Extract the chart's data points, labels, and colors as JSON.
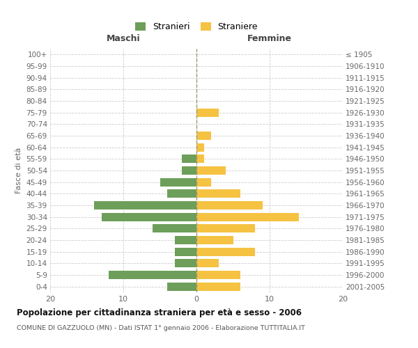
{
  "age_groups": [
    "100+",
    "95-99",
    "90-94",
    "85-89",
    "80-84",
    "75-79",
    "70-74",
    "65-69",
    "60-64",
    "55-59",
    "50-54",
    "45-49",
    "40-44",
    "35-39",
    "30-34",
    "25-29",
    "20-24",
    "15-19",
    "10-14",
    "5-9",
    "0-4"
  ],
  "birth_years": [
    "≤ 1905",
    "1906-1910",
    "1911-1915",
    "1916-1920",
    "1921-1925",
    "1926-1930",
    "1931-1935",
    "1936-1940",
    "1941-1945",
    "1946-1950",
    "1951-1955",
    "1956-1960",
    "1961-1965",
    "1966-1970",
    "1971-1975",
    "1976-1980",
    "1981-1985",
    "1986-1990",
    "1991-1995",
    "1996-2000",
    "2001-2005"
  ],
  "maschi": [
    0,
    0,
    0,
    0,
    0,
    0,
    0,
    0,
    0,
    2,
    2,
    5,
    4,
    14,
    13,
    6,
    3,
    3,
    3,
    12,
    4
  ],
  "femmine": [
    0,
    0,
    0,
    0,
    0,
    3,
    0,
    2,
    1,
    1,
    4,
    2,
    6,
    9,
    14,
    8,
    5,
    8,
    3,
    6,
    6
  ],
  "maschi_color": "#6d9e5a",
  "femmine_color": "#f5c242",
  "title": "Popolazione per cittadinanza straniera per età e sesso - 2006",
  "subtitle": "COMUNE DI GAZZUOLO (MN) - Dati ISTAT 1° gennaio 2006 - Elaborazione TUTTITALIA.IT",
  "legend_maschi": "Stranieri",
  "legend_femmine": "Straniere",
  "xlabel_left": "Maschi",
  "xlabel_right": "Femmine",
  "ylabel_left": "Fasce di età",
  "xlim": 20,
  "background_color": "#ffffff",
  "grid_color": "#cccccc"
}
